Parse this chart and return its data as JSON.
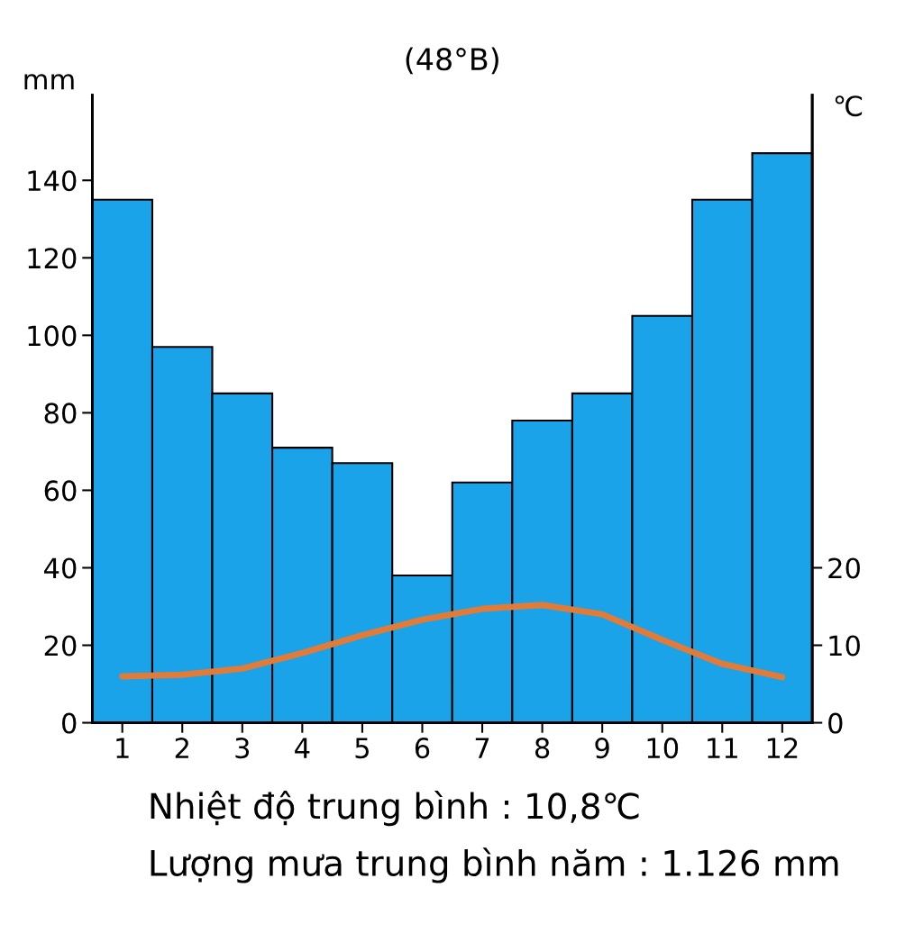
{
  "chart_data": {
    "type": "bar",
    "title": "(48°B)",
    "ylabel": "mm",
    "y2label": "℃",
    "categories": [
      "1",
      "2",
      "3",
      "4",
      "5",
      "6",
      "7",
      "8",
      "9",
      "10",
      "11",
      "12"
    ],
    "series": [
      {
        "color": "#1aa3e8",
        "values": [
          135,
          97,
          85,
          71,
          67,
          38,
          62,
          78,
          85,
          105,
          135,
          147
        ]
      },
      {
        "type": "line",
        "axis": "y2",
        "color": "#e07b39",
        "values": [
          6,
          6.2,
          7,
          9,
          11.3,
          13.3,
          14.7,
          15.2,
          14,
          10.7,
          7.6,
          5.9
        ]
      }
    ],
    "ylim": [
      0,
      162
    ],
    "yticks": [
      0,
      20,
      40,
      60,
      80,
      100,
      120,
      140
    ],
    "y2lim": [
      0,
      81
    ],
    "y2ticks": [
      0,
      10,
      20
    ],
    "grid": false,
    "legend": false,
    "marker": "none",
    "line_style": "solid",
    "annotations": [
      "Nhiệt độ trung bình : 10,8℃",
      "Lượng mưa trung bình năm : 1.126 mm"
    ]
  }
}
